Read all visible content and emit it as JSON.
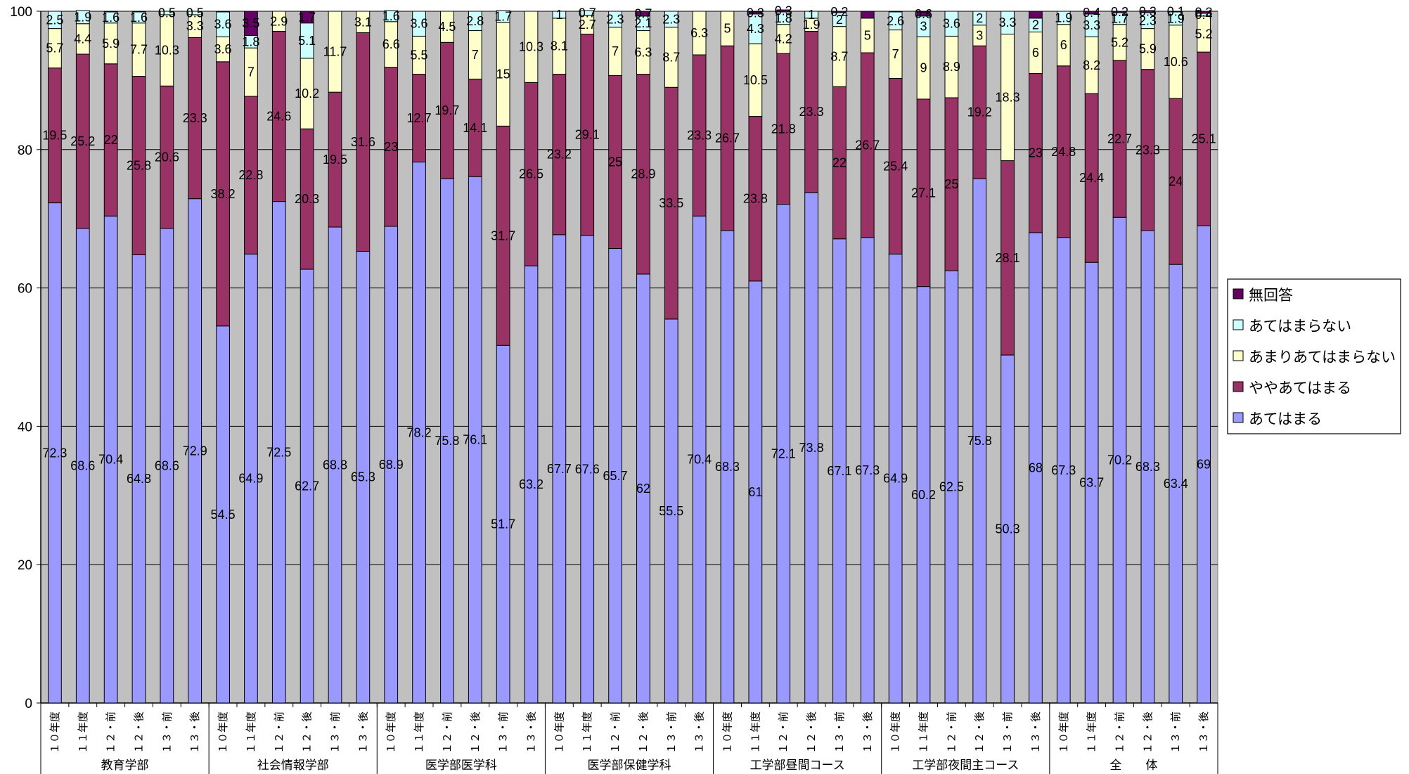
{
  "colors": {
    "plot_bg": "#c0c0c0",
    "series": [
      "#9999ff",
      "#993366",
      "#ffffcc",
      "#ccffff",
      "#660066"
    ]
  },
  "chart_data": {
    "type": "bar",
    "stacked": true,
    "ylim": [
      0,
      100
    ],
    "yticks": [
      0,
      20,
      40,
      60,
      80,
      100
    ],
    "grid": true,
    "legend_position": "right",
    "groups": [
      {
        "label": "教育学部",
        "categories": [
          "１０年度",
          "１１年度",
          "１２・前",
          "１２・後",
          "１３・前",
          "１３・後"
        ]
      },
      {
        "label": "社会情報学部",
        "categories": [
          "１０年度",
          "１１年度",
          "１２・前",
          "１２・後",
          "１３・前",
          "１３・後"
        ]
      },
      {
        "label": "医学部医学科",
        "categories": [
          "１０年度",
          "１１年度",
          "１２・前",
          "１２・後",
          "１３・前",
          "１３・後"
        ]
      },
      {
        "label": "医学部保健学科",
        "categories": [
          "１０年度",
          "１１年度",
          "１２・前",
          "１２・後",
          "１３・前",
          "１３・後"
        ]
      },
      {
        "label": "工学部昼間コース",
        "categories": [
          "１０年度",
          "１１年度",
          "１２・前",
          "１２・後",
          "１３・前",
          "１３・後"
        ]
      },
      {
        "label": "工学部夜間主コース",
        "categories": [
          "１０年度",
          "１１年度",
          "１２・前",
          "１２・後",
          "１３・前",
          "１３・後"
        ]
      },
      {
        "label": "全　　体",
        "categories": [
          "１０年度",
          "１１年度",
          "１２・前",
          "１２・後",
          "１３・前",
          "１３・後"
        ]
      }
    ],
    "series": [
      {
        "name": "あてはまる",
        "values": [
          72.3,
          68.6,
          70.4,
          64.8,
          68.6,
          72.9,
          54.5,
          64.9,
          72.5,
          62.7,
          68.8,
          65.3,
          68.9,
          78.2,
          75.8,
          76.1,
          51.7,
          63.2,
          67.7,
          67.6,
          65.7,
          62,
          55.5,
          70.4,
          68.3,
          61,
          72.1,
          73.8,
          67.1,
          67.3,
          64.9,
          60.2,
          62.5,
          75.8,
          50.3,
          68,
          67.3,
          63.7,
          70.2,
          68.3,
          63.4,
          69
        ]
      },
      {
        "name": "ややあてはまる",
        "values": [
          19.5,
          25.2,
          22,
          25.8,
          20.6,
          23.3,
          38.2,
          22.8,
          24.6,
          20.3,
          19.5,
          31.6,
          23,
          12.7,
          19.7,
          14.1,
          31.7,
          26.5,
          23.2,
          29.1,
          25,
          28.9,
          33.5,
          23.3,
          26.7,
          23.8,
          21.8,
          23.3,
          22,
          26.7,
          25.4,
          27.1,
          25,
          19.2,
          28.1,
          23,
          24.8,
          24.4,
          22.7,
          23.3,
          24,
          25.1
        ]
      },
      {
        "name": "あまりあてはまらない",
        "values": [
          5.7,
          4.4,
          5.9,
          7.7,
          10.3,
          3.3,
          3.6,
          7,
          2.9,
          10.2,
          11.7,
          3.1,
          6.6,
          5.5,
          4.5,
          7,
          15,
          10.3,
          8.1,
          2.7,
          7,
          6.3,
          8.7,
          6.3,
          5,
          10.5,
          4.2,
          1.9,
          8.7,
          5,
          7,
          9,
          8.9,
          3,
          18.3,
          6,
          6,
          8.2,
          5.2,
          5.9,
          10.6,
          5.2
        ]
      },
      {
        "name": "あてはまらない",
        "values": [
          2.5,
          1.9,
          1.6,
          1.6,
          0.5,
          0.5,
          3.6,
          1.8,
          0,
          5.1,
          0,
          0,
          1.6,
          3.6,
          0,
          2.8,
          1.7,
          0,
          1,
          0.7,
          2.3,
          2.1,
          2.3,
          0,
          0,
          4.3,
          1.8,
          1,
          2,
          0,
          2.6,
          3,
          3.6,
          2,
          3.3,
          2,
          1.9,
          3.3,
          1.7,
          2.3,
          1.9,
          0.4
        ]
      },
      {
        "name": "無回答",
        "values": [
          0,
          0,
          0,
          0,
          0,
          0,
          0,
          3.5,
          0,
          1.7,
          0,
          0,
          0,
          0,
          0,
          0,
          0,
          0,
          0,
          0,
          0,
          0.7,
          0,
          0,
          0,
          0.3,
          0.3,
          0,
          0.2,
          1,
          0,
          0.6,
          0,
          0,
          0,
          1,
          0,
          0.4,
          0.2,
          0.3,
          0.1,
          0.3
        ]
      }
    ],
    "data_labels": [
      [
        "72.3",
        "19.5",
        "5.7",
        "2.5",
        ""
      ],
      [
        "68.6",
        "25.2",
        "4.4",
        "1.9",
        ""
      ],
      [
        "70.4",
        "22",
        "5.9",
        "1.6",
        ""
      ],
      [
        "64.8",
        "25.8",
        "7.7",
        "1.6",
        ""
      ],
      [
        "68.6",
        "20.6",
        "10.3",
        "0.5",
        ""
      ],
      [
        "72.9",
        "23.3",
        "3.3",
        "0.5",
        ""
      ],
      [
        "54.5",
        "38.2",
        "3.6",
        "3.6",
        ""
      ],
      [
        "64.9",
        "22.8",
        "7",
        "1.8",
        "3.5"
      ],
      [
        "72.5",
        "24.6",
        "2.9",
        "",
        ""
      ],
      [
        "62.7",
        "20.3",
        "10.2",
        "5.1",
        "1.7"
      ],
      [
        "68.8",
        "19.5",
        "11.7",
        "",
        ""
      ],
      [
        "65.3",
        "31.6",
        "3.1",
        "",
        ""
      ],
      [
        "68.9",
        "23",
        "6.6",
        "1.6",
        ""
      ],
      [
        "78.2",
        "12.7",
        "5.5",
        "3.6",
        ""
      ],
      [
        "75.8",
        "19.7",
        "4.5",
        "",
        ""
      ],
      [
        "76.1",
        "14.1",
        "7",
        "2.8",
        ""
      ],
      [
        "51.7",
        "31.7",
        "15",
        "1.7",
        ""
      ],
      [
        "63.2",
        "26.5",
        "10.3",
        "",
        ""
      ],
      [
        "67.7",
        "23.2",
        "8.1",
        "1",
        ""
      ],
      [
        "67.6",
        "29.1",
        "2.7",
        "0.7",
        ""
      ],
      [
        "65.7",
        "25",
        "7",
        "2.3",
        ""
      ],
      [
        "62",
        "28.9",
        "6.3",
        "2.1",
        "0.7"
      ],
      [
        "55.5",
        "33.5",
        "8.7",
        "2.3",
        ""
      ],
      [
        "70.4",
        "23.3",
        "6.3",
        "",
        ""
      ],
      [
        "68.3",
        "26.7",
        "5",
        "",
        ""
      ],
      [
        "61",
        "23.8",
        "10.5",
        "4.3",
        "0.3"
      ],
      [
        "72.1",
        "21.8",
        "4.2",
        "1.8",
        "0.3"
      ],
      [
        "73.8",
        "23.3",
        "1.9",
        "1",
        ""
      ],
      [
        "67.1",
        "22",
        "8.7",
        "2",
        "0.2"
      ],
      [
        "67.3",
        "26.7",
        "5",
        "",
        ""
      ],
      [
        "64.9",
        "25.4",
        "7",
        "2.6",
        ""
      ],
      [
        "60.2",
        "27.1",
        "9",
        "3",
        "0.6"
      ],
      [
        "62.5",
        "25",
        "8.9",
        "3.6",
        ""
      ],
      [
        "75.8",
        "19.2",
        "3",
        "2",
        ""
      ],
      [
        "50.3",
        "28.1",
        "18.3",
        "3.3",
        ""
      ],
      [
        "68",
        "23",
        "6",
        "2",
        ""
      ],
      [
        "67.3",
        "24.8",
        "6",
        "1.9",
        ""
      ],
      [
        "63.7",
        "24.4",
        "8.2",
        "3.3",
        "0.4"
      ],
      [
        "70.2",
        "22.7",
        "5.2",
        "1.7",
        "0.2"
      ],
      [
        "68.3",
        "23.3",
        "5.9",
        "2.3",
        "0.3"
      ],
      [
        "63.4",
        "24",
        "10.6",
        "1.9",
        "0.1"
      ],
      [
        "69",
        "25.1",
        "5.2",
        "0.4",
        "0.3"
      ]
    ],
    "legend_order": [
      "無回答",
      "あてはまらない",
      "あまりあてはまらない",
      "ややあてはまる",
      "あてはまる"
    ]
  }
}
